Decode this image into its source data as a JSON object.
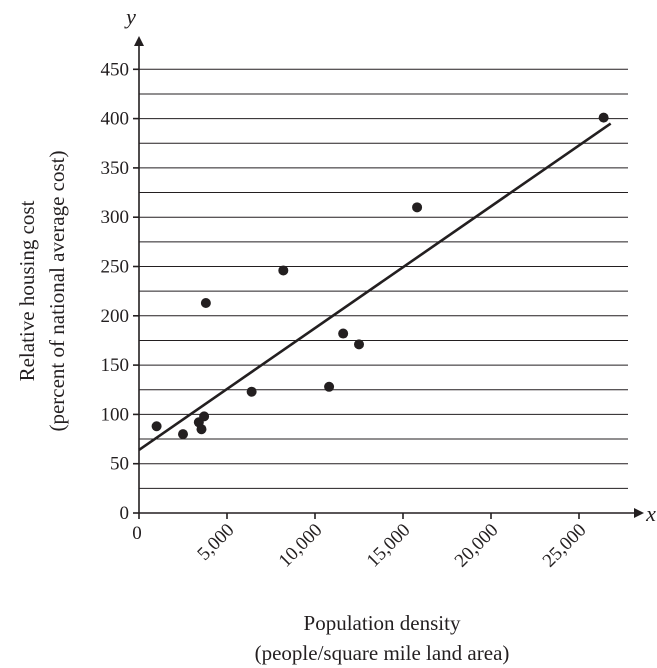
{
  "chart_data": {
    "type": "scatter",
    "xlabel_line1": "Population density",
    "xlabel_line2": "(people/square mile land area)",
    "ylabel_line1": "Relative housing cost",
    "ylabel_line2": "(percent of national average cost)",
    "x_axis_var": "x",
    "y_axis_var": "y",
    "xlim": [
      0,
      28000
    ],
    "ylim": [
      0,
      450
    ],
    "x_ticks": [
      {
        "value": 0,
        "label": "0"
      },
      {
        "value": 5000,
        "label": "5,000"
      },
      {
        "value": 10000,
        "label": "10,000"
      },
      {
        "value": 15000,
        "label": "15,000"
      },
      {
        "value": 20000,
        "label": "20,000"
      },
      {
        "value": 25000,
        "label": "25,000"
      }
    ],
    "y_ticks": [
      {
        "value": 0,
        "label": "0"
      },
      {
        "value": 50,
        "label": "50"
      },
      {
        "value": 100,
        "label": "100"
      },
      {
        "value": 150,
        "label": "150"
      },
      {
        "value": 200,
        "label": "200"
      },
      {
        "value": 250,
        "label": "250"
      },
      {
        "value": 300,
        "label": "300"
      },
      {
        "value": 350,
        "label": "350"
      },
      {
        "value": 400,
        "label": "400"
      },
      {
        "value": 450,
        "label": "450"
      }
    ],
    "grid": "horizontal lines every 25",
    "points": [
      {
        "x": 1000,
        "y": 88
      },
      {
        "x": 2500,
        "y": 80
      },
      {
        "x": 3400,
        "y": 92
      },
      {
        "x": 3550,
        "y": 85
      },
      {
        "x": 3700,
        "y": 98
      },
      {
        "x": 3800,
        "y": 213
      },
      {
        "x": 6400,
        "y": 123
      },
      {
        "x": 8200,
        "y": 246
      },
      {
        "x": 10800,
        "y": 128
      },
      {
        "x": 11600,
        "y": 182
      },
      {
        "x": 12500,
        "y": 171
      },
      {
        "x": 15800,
        "y": 310
      },
      {
        "x": 26400,
        "y": 401
      }
    ],
    "fit_line": {
      "x": [
        0,
        26800
      ],
      "y": [
        64,
        395
      ]
    }
  }
}
